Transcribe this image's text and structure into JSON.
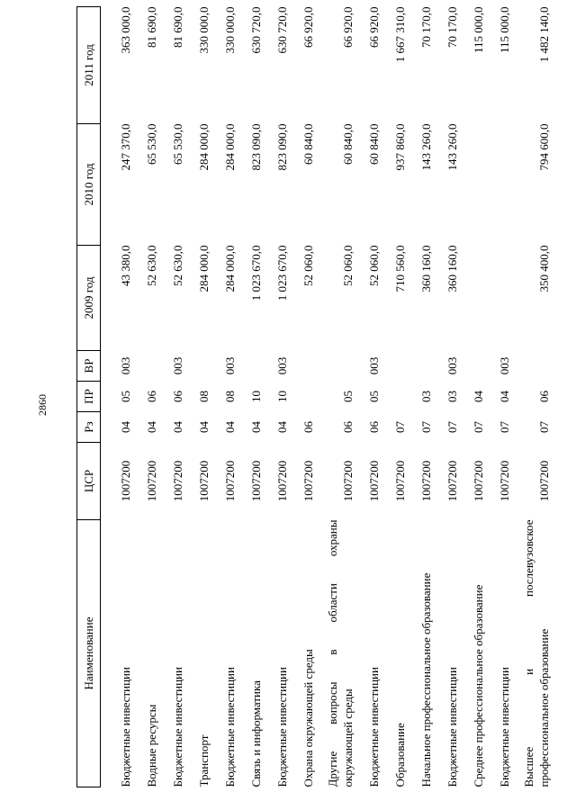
{
  "page": {
    "number": "2860",
    "colors": {
      "text": "#000000",
      "background": "#ffffff",
      "table_border": "#000000"
    }
  },
  "table": {
    "headers": {
      "name": "Наименование",
      "csr": "ЦСР",
      "rz": "Рз",
      "pr": "ПР",
      "vr": "ВР",
      "y2009": "2009 год",
      "y2010": "2010 год",
      "y2011": "2011 год"
    },
    "rows": [
      {
        "name_lines": [
          "Бюджетные инвестиции"
        ],
        "csr": "1007200",
        "rz": "04",
        "pr": "05",
        "vr": "003",
        "y2009": "43 380,0",
        "y2010": "247 370,0",
        "y2011": "363 000,0"
      },
      {
        "name_lines": [
          "Водные ресурсы"
        ],
        "csr": "1007200",
        "rz": "04",
        "pr": "06",
        "vr": "",
        "y2009": "52 630,0",
        "y2010": "65 530,0",
        "y2011": "81 690,0"
      },
      {
        "name_lines": [
          "Бюджетные инвестиции"
        ],
        "csr": "1007200",
        "rz": "04",
        "pr": "06",
        "vr": "003",
        "y2009": "52 630,0",
        "y2010": "65 530,0",
        "y2011": "81 690,0"
      },
      {
        "name_lines": [
          "Транспорт"
        ],
        "csr": "1007200",
        "rz": "04",
        "pr": "08",
        "vr": "",
        "y2009": "284 000,0",
        "y2010": "284 000,0",
        "y2011": "330 000,0"
      },
      {
        "name_lines": [
          "Бюджетные инвестиции"
        ],
        "csr": "1007200",
        "rz": "04",
        "pr": "08",
        "vr": "003",
        "y2009": "284 000,0",
        "y2010": "284 000,0",
        "y2011": "330 000,0"
      },
      {
        "name_lines": [
          "Связь и информатика"
        ],
        "csr": "1007200",
        "rz": "04",
        "pr": "10",
        "vr": "",
        "y2009": "1 023 670,0",
        "y2010": "823 090,0",
        "y2011": "630 720,0"
      },
      {
        "name_lines": [
          "Бюджетные инвестиции"
        ],
        "csr": "1007200",
        "rz": "04",
        "pr": "10",
        "vr": "003",
        "y2009": "1 023 670,0",
        "y2010": "823 090,0",
        "y2011": "630 720,0"
      },
      {
        "name_lines": [
          "Охрана окружающей среды"
        ],
        "csr": "1007200",
        "rz": "06",
        "pr": "",
        "vr": "",
        "y2009": "52 060,0",
        "y2010": "60 840,0",
        "y2011": "66 920,0"
      },
      {
        "name_lines": [
          "Другие вопросы в области охраны",
          "окружающей среды"
        ],
        "csr": "1007200",
        "rz": "06",
        "pr": "05",
        "vr": "",
        "y2009": "52 060,0",
        "y2010": "60 840,0",
        "y2011": "66 920,0"
      },
      {
        "name_lines": [
          "Бюджетные инвестиции"
        ],
        "csr": "1007200",
        "rz": "06",
        "pr": "05",
        "vr": "003",
        "y2009": "52 060,0",
        "y2010": "60 840,0",
        "y2011": "66 920,0"
      },
      {
        "name_lines": [
          "Образование"
        ],
        "csr": "1007200",
        "rz": "07",
        "pr": "",
        "vr": "",
        "y2009": "710 560,0",
        "y2010": "937 860,0",
        "y2011": "1 667 310,0"
      },
      {
        "name_lines": [
          "Начальное профессиональное образование"
        ],
        "csr": "1007200",
        "rz": "07",
        "pr": "03",
        "vr": "",
        "y2009": "360 160,0",
        "y2010": "143 260,0",
        "y2011": "70 170,0"
      },
      {
        "name_lines": [
          "Бюджетные инвестиции"
        ],
        "csr": "1007200",
        "rz": "07",
        "pr": "03",
        "vr": "003",
        "y2009": "360 160,0",
        "y2010": "143 260,0",
        "y2011": "70 170,0"
      },
      {
        "name_lines": [
          "Среднее профессиональное образование"
        ],
        "csr": "1007200",
        "rz": "07",
        "pr": "04",
        "vr": "",
        "y2009": "",
        "y2010": "",
        "y2011": "115 000,0"
      },
      {
        "name_lines": [
          "Бюджетные инвестиции"
        ],
        "csr": "1007200",
        "rz": "07",
        "pr": "04",
        "vr": "003",
        "y2009": "",
        "y2010": "",
        "y2011": "115 000,0"
      },
      {
        "name_lines": [
          "Высшее и послевузовское",
          "профессиональное образование"
        ],
        "csr": "1007200",
        "rz": "07",
        "pr": "06",
        "vr": "",
        "y2009": "350 400,0",
        "y2010": "794 600,0",
        "y2011": "1 482 140,0"
      }
    ]
  }
}
